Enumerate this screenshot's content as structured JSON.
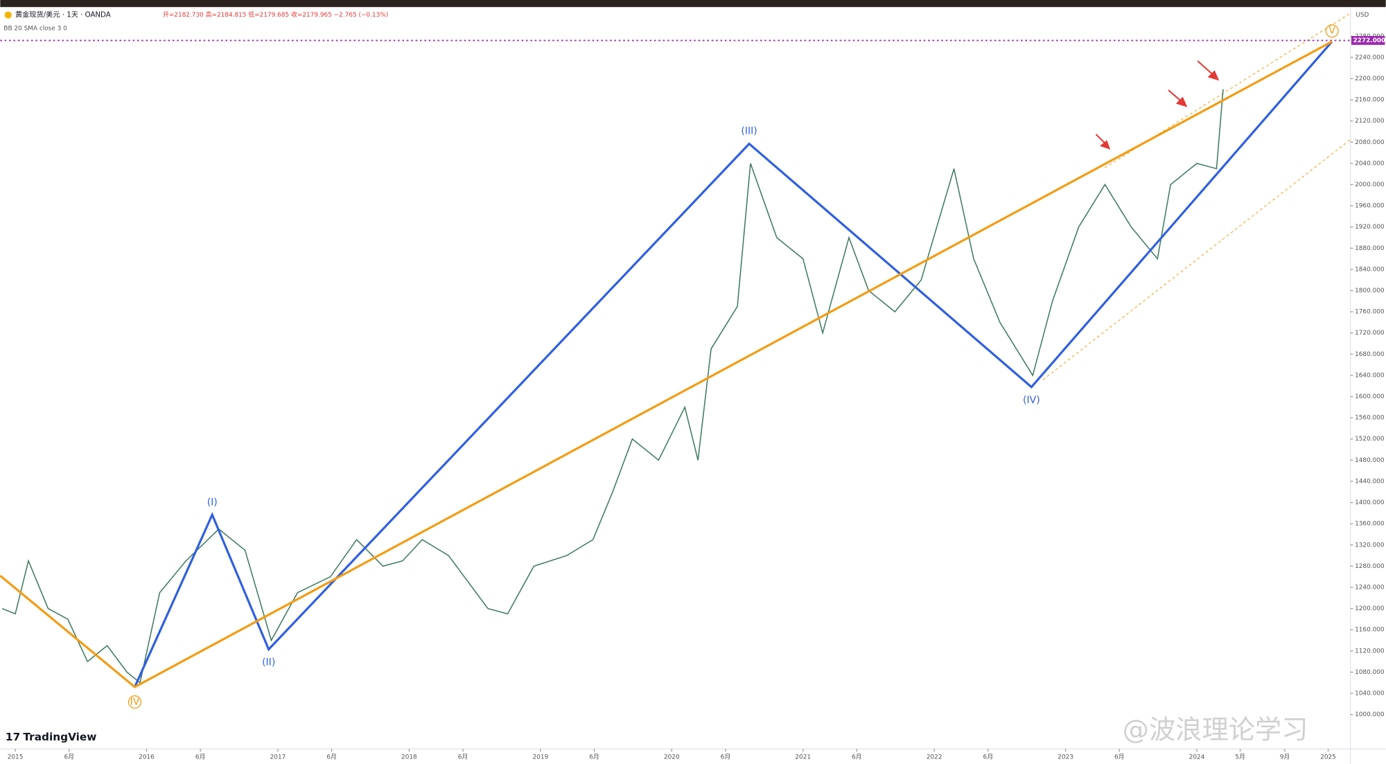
{
  "chart_data": {
    "type": "line",
    "title": "黄金现货/美元 · 1天 · OANDA",
    "subtitle": "开=2182.730 高=2184.815 低=2179.685 收=2179.965 −2.765 (−0.13%)",
    "indicator": "BB 20 SMA close 3 0",
    "currency": "USD",
    "brand": "TradingView",
    "watermark": "@波浪理论学习",
    "xlim": [
      2014.885,
      2025.17
    ],
    "ylim": [
      935,
      2335
    ],
    "xticks": [
      2015,
      {
        "value": 2015.41,
        "label": "6月"
      },
      2016,
      {
        "value": 2016.41,
        "label": "6月"
      },
      2017,
      {
        "value": 2017.41,
        "label": "6月"
      },
      2018,
      {
        "value": 2018.41,
        "label": "6月"
      },
      2019,
      {
        "value": 2019.41,
        "label": "6月"
      },
      2020,
      {
        "value": 2020.41,
        "label": "6月"
      },
      2021,
      {
        "value": 2021.41,
        "label": "6月"
      },
      2022,
      {
        "value": 2022.41,
        "label": "6月"
      },
      2023,
      {
        "value": 2023.41,
        "label": "6月"
      },
      2024,
      {
        "value": 2024.33,
        "label": "5月"
      },
      {
        "value": 2024.67,
        "label": "9月"
      },
      2025
    ],
    "yticks": [
      {
        "value": 1000,
        "label": "1000.000"
      },
      {
        "value": 1040,
        "label": "1040.000"
      },
      {
        "value": 1080,
        "label": "1080.000"
      },
      {
        "value": 1120,
        "label": "1120.000"
      },
      {
        "value": 1160,
        "label": "1160.000"
      },
      {
        "value": 1200,
        "label": "1200.000"
      },
      {
        "value": 1240,
        "label": "1240.000"
      },
      {
        "value": 1280,
        "label": "1280.000"
      },
      {
        "value": 1320,
        "label": "1320.000"
      },
      {
        "value": 1360,
        "label": "1360.000"
      },
      {
        "value": 1400,
        "label": "1400.000"
      },
      {
        "value": 1440,
        "label": "1440.000"
      },
      {
        "value": 1480,
        "label": "1480.000"
      },
      {
        "value": 1520,
        "label": "1520.000"
      },
      {
        "value": 1560,
        "label": "1560.000"
      },
      {
        "value": 1600,
        "label": "1600.000"
      },
      {
        "value": 1640,
        "label": "1640.000"
      },
      {
        "value": 1680,
        "label": "1680.000"
      },
      {
        "value": 1720,
        "label": "1720.000"
      },
      {
        "value": 1760,
        "label": "1760.000"
      },
      {
        "value": 1800,
        "label": "1800.000"
      },
      {
        "value": 1840,
        "label": "1840.000"
      },
      {
        "value": 1880,
        "label": "1880.000"
      },
      {
        "value": 1920,
        "label": "1920.000"
      },
      {
        "value": 1960,
        "label": "1960.000"
      },
      {
        "value": 2000,
        "label": "2000.000"
      },
      {
        "value": 2040,
        "label": "2040.000"
      },
      {
        "value": 2080,
        "label": "2080.000"
      },
      {
        "value": 2120,
        "label": "2120.000"
      },
      {
        "value": 2160,
        "label": "2160.000"
      },
      {
        "value": 2200,
        "label": "2200.000"
      },
      {
        "value": 2240,
        "label": "2240.000"
      },
      {
        "value": 2280,
        "label": "2280.000"
      }
    ],
    "hline": {
      "value": 2272,
      "label": "2272.000",
      "color": "#9c27b0"
    },
    "series": [
      {
        "name": "XAUUSD",
        "color": "#3d7a5c",
        "x": [
          2014.9,
          2015.0,
          2015.1,
          2015.25,
          2015.4,
          2015.55,
          2015.7,
          2015.85,
          2015.95,
          2016.1,
          2016.3,
          2016.55,
          2016.75,
          2016.95,
          2017.15,
          2017.4,
          2017.6,
          2017.8,
          2017.95,
          2018.1,
          2018.3,
          2018.6,
          2018.75,
          2018.95,
          2019.2,
          2019.4,
          2019.55,
          2019.7,
          2019.9,
          2020.1,
          2020.2,
          2020.3,
          2020.5,
          2020.6,
          2020.8,
          2021.0,
          2021.15,
          2021.35,
          2021.5,
          2021.7,
          2021.9,
          2022.15,
          2022.3,
          2022.5,
          2022.75,
          2022.9,
          2023.1,
          2023.3,
          2023.5,
          2023.7,
          2023.8,
          2024.0,
          2024.15,
          2024.2
        ],
        "values": [
          1200,
          1190,
          1290,
          1200,
          1180,
          1100,
          1130,
          1080,
          1060,
          1230,
          1290,
          1350,
          1310,
          1140,
          1230,
          1260,
          1330,
          1280,
          1290,
          1330,
          1300,
          1200,
          1190,
          1280,
          1300,
          1330,
          1420,
          1520,
          1480,
          1580,
          1480,
          1690,
          1770,
          2040,
          1900,
          1860,
          1720,
          1900,
          1800,
          1760,
          1820,
          2030,
          1860,
          1740,
          1640,
          1780,
          1920,
          2000,
          1920,
          1860,
          2000,
          2040,
          2030,
          2180
        ]
      },
      {
        "name": "wave",
        "color": "#2f5fe0",
        "x": [
          2015.91,
          2016.5,
          2016.93,
          2020.59,
          2022.74,
          2025.03
        ],
        "values": [
          1052,
          1377,
          1123,
          2077,
          1618,
          2270
        ]
      },
      {
        "name": "trend",
        "color": "#f39c12",
        "x": [
          2014.885,
          2015.91,
          2025.03
        ],
        "values": [
          1262,
          1052,
          2270
        ]
      }
    ],
    "wave_labels": [
      {
        "label": "(I)",
        "x": 2016.5,
        "value": 1377,
        "color": "#2f5fe0"
      },
      {
        "label": "(II)",
        "x": 2016.93,
        "value": 1123,
        "color": "#2f5fe0"
      },
      {
        "label": "(III)",
        "x": 2020.59,
        "value": 2077,
        "color": "#2f5fe0"
      },
      {
        "label": "(IV)",
        "x": 2022.74,
        "value": 1618,
        "color": "#2f5fe0"
      },
      {
        "label": "IV",
        "x": 2015.91,
        "value": 1052,
        "color": "#f39c12"
      },
      {
        "label": "V",
        "x": 2025.03,
        "value": 2270,
        "color": "#f39c12"
      }
    ]
  }
}
